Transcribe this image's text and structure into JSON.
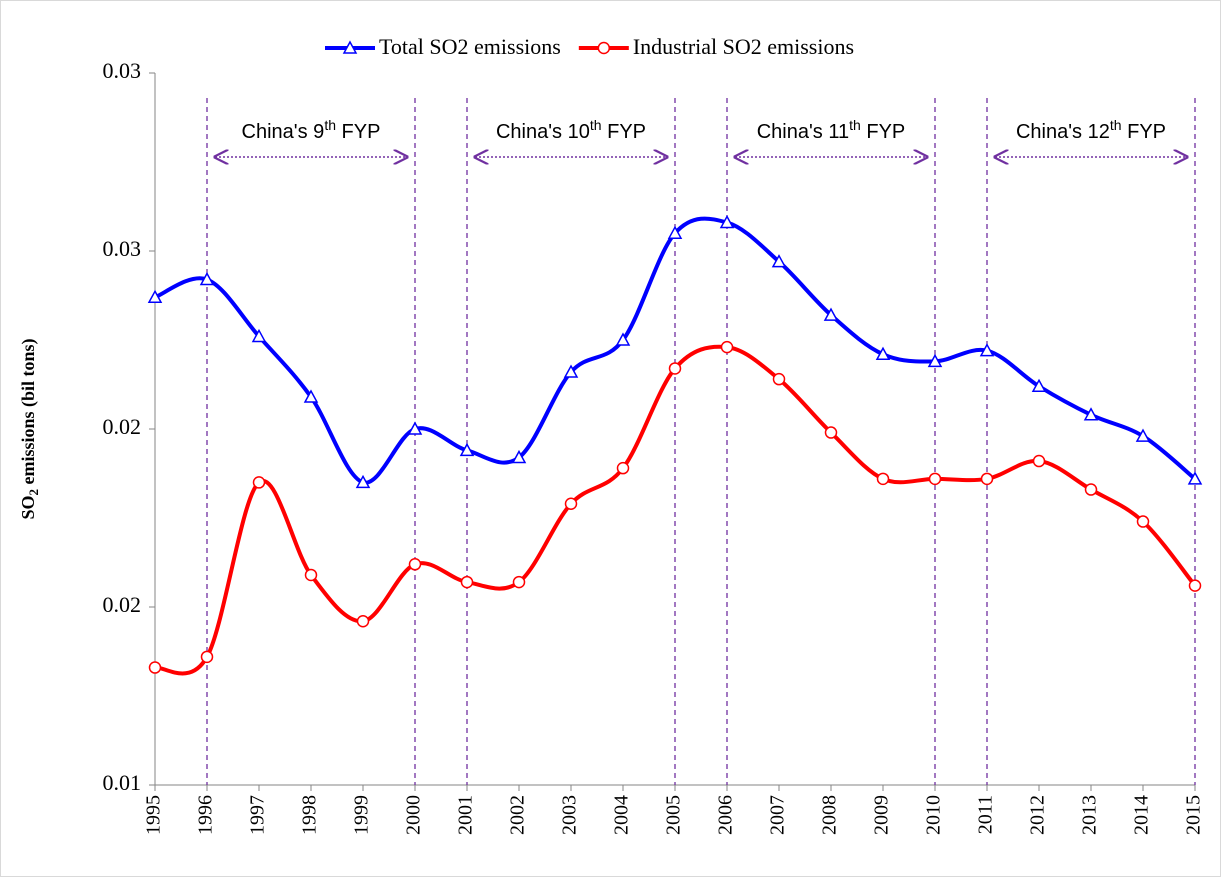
{
  "chart_data": {
    "type": "line",
    "ylabel_parts": [
      "SO",
      "2",
      " emissions (bil tons)"
    ],
    "categories": [
      "1995",
      "1996",
      "1997",
      "1998",
      "1999",
      "2000",
      "2001",
      "2002",
      "2003",
      "2004",
      "2005",
      "2006",
      "2007",
      "2008",
      "2009",
      "2010",
      "2011",
      "2012",
      "2013",
      "2014",
      "2015"
    ],
    "ylim": [
      0.01,
      0.03
    ],
    "yticks": [
      0.01,
      {
        "value": 0.015,
        "label": "0.02"
      },
      0.02,
      {
        "value": 0.025,
        "label": "0.03"
      },
      0.03
    ],
    "series": [
      {
        "name": "Total SO2 emissions",
        "color": "#0000ff",
        "marker": "triangle",
        "values": [
          0.0237,
          0.0242,
          0.0226,
          0.0209,
          0.0185,
          0.02,
          0.0194,
          0.0192,
          0.0216,
          0.0225,
          0.0255,
          0.0258,
          0.0247,
          0.0232,
          0.0221,
          0.0219,
          0.0222,
          0.0212,
          0.0204,
          0.0198,
          0.0186
        ]
      },
      {
        "name": "Industrial SO2 emissions",
        "color": "#ff0000",
        "marker": "circle",
        "values": [
          0.0133,
          0.0136,
          0.0185,
          0.0159,
          0.0146,
          0.0162,
          0.0157,
          0.0157,
          0.0179,
          0.0189,
          0.0217,
          0.0223,
          0.0214,
          0.0199,
          0.0186,
          0.0186,
          0.0186,
          0.0191,
          0.0183,
          0.0174,
          0.0156
        ]
      }
    ],
    "periods": [
      {
        "start": "1996",
        "end": "2000",
        "label_parts": [
          "China's 9",
          "th",
          " FYP"
        ]
      },
      {
        "start": "2001",
        "end": "2005",
        "label_parts": [
          "China's 10",
          "th",
          " FYP"
        ]
      },
      {
        "start": "2006",
        "end": "2010",
        "label_parts": [
          "China's 11",
          "th",
          " FYP"
        ]
      },
      {
        "start": "2011",
        "end": "2015",
        "label_parts": [
          "China's 12",
          "th",
          " FYP"
        ]
      }
    ],
    "period_color": "#7030a0",
    "legend": "top"
  }
}
